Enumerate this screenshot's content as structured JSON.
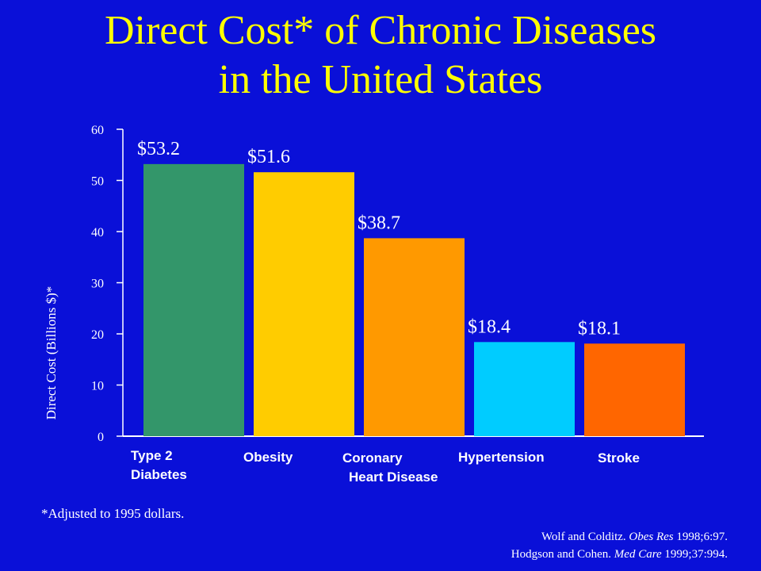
{
  "chart_data": {
    "type": "bar",
    "title_line1": "Direct Cost* of Chronic Diseases",
    "title_line2": "in the United States",
    "ylabel": "Direct Cost (Billions $)*",
    "xlabel": "",
    "ylim": [
      0,
      60
    ],
    "yticks": [
      0,
      10,
      20,
      30,
      40,
      50,
      60
    ],
    "categories": [
      [
        "Type 2",
        "Diabetes"
      ],
      [
        "Obesity"
      ],
      [
        "Coronary",
        "Heart Disease"
      ],
      [
        "Hypertension"
      ],
      [
        "Stroke"
      ]
    ],
    "values": [
      53.2,
      51.6,
      38.7,
      18.4,
      18.1
    ],
    "value_labels": [
      "$53.2",
      "$51.6",
      "$38.7",
      "$18.4",
      "$18.1"
    ],
    "colors": [
      "#33966a",
      "#ffcc00",
      "#ff9900",
      "#00ccff",
      "#ff6600"
    ],
    "grid": false,
    "legend": "none"
  },
  "footnote": "*Adjusted to 1995 dollars.",
  "references": {
    "ref1_pre": "Wolf and Colditz. ",
    "ref1_journal": "Obes Res",
    "ref1_post": " 1998;6:97.",
    "ref2_pre": "Hodgson and Cohen. ",
    "ref2_journal": "Med Care",
    "ref2_post": " 1999;37:994."
  },
  "colors": {
    "background": "#0a10d8",
    "title": "#ffff00",
    "axis_text": "#ffffff",
    "value_label": "#ffffff"
  }
}
